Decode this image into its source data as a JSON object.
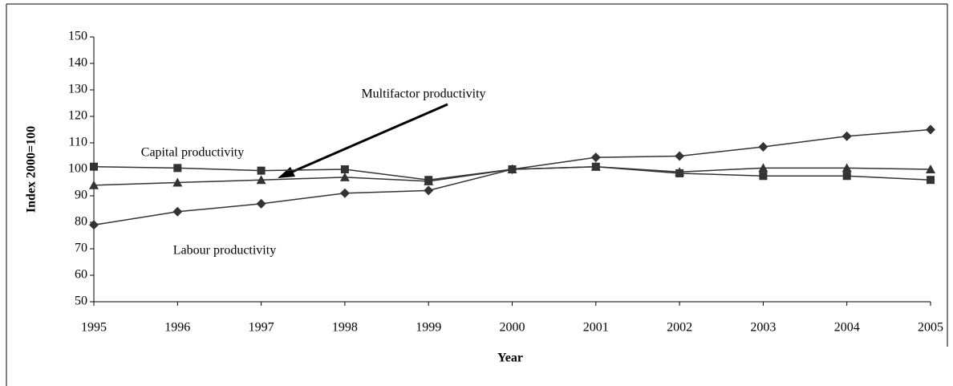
{
  "chart_data": {
    "type": "line",
    "x": [
      1995,
      1996,
      1997,
      1998,
      1999,
      2000,
      2001,
      2002,
      2003,
      2004,
      2005
    ],
    "xlim": [
      1995,
      2005
    ],
    "xticks": [
      1995,
      1996,
      1997,
      1998,
      1999,
      2000,
      2001,
      2002,
      2003,
      2004,
      2005
    ],
    "ylim": [
      50,
      150
    ],
    "yticks": [
      50,
      60,
      70,
      80,
      90,
      100,
      110,
      120,
      130,
      140,
      150
    ],
    "x_label": "Year",
    "y_label": "Index 2000=100",
    "series": [
      {
        "name": "Capital productivity",
        "color": "#333333",
        "marker": "square",
        "values": [
          101,
          100.5,
          99.5,
          100,
          96,
          100,
          101,
          98.5,
          97.5,
          97.5,
          96
        ]
      },
      {
        "name": "Labour productivity",
        "color": "#333333",
        "marker": "diamond",
        "values": [
          79,
          84,
          87,
          91,
          92,
          100,
          104.5,
          105,
          108.5,
          112.5,
          115
        ]
      },
      {
        "name": "Multifactor productivity",
        "color": "#333333",
        "marker": "triangle",
        "values": [
          94,
          95,
          96,
          97,
          95.5,
          100,
          101,
          99,
          100.5,
          100.5,
          100
        ]
      }
    ]
  }
}
